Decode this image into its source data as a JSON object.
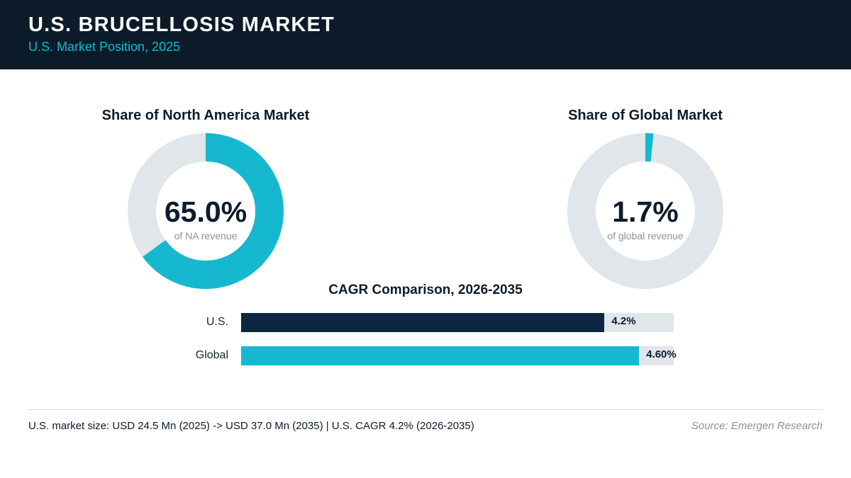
{
  "header": {
    "title": "U.S. BRUCELLOSIS MARKET",
    "subtitle": "U.S. Market Position, 2025"
  },
  "colors": {
    "header_bg": "#0b1b2a",
    "accent": "#16b8cf",
    "navy": "#0d2740",
    "track": "#e1e6ea"
  },
  "chart_data": [
    {
      "type": "pie",
      "title": "Share of North America Market",
      "value": 65.0,
      "value_label": "65.0%",
      "caption": "of NA revenue",
      "color": "#16b8cf"
    },
    {
      "type": "pie",
      "title": "Share of Global Market",
      "value": 1.7,
      "value_label": "1.7%",
      "caption": "of global revenue",
      "color": "#16b8cf"
    },
    {
      "type": "bar",
      "title": "CAGR Comparison, 2026-2035",
      "categories": [
        "U.S.",
        "Global"
      ],
      "values": [
        4.2,
        4.6
      ],
      "value_labels": [
        "4.2%",
        "4.60%"
      ],
      "colors": [
        "#0d2740",
        "#16b8cf"
      ],
      "xlim": [
        0,
        5
      ]
    }
  ],
  "footer": {
    "note": "U.S. market size: USD 24.5 Mn (2025) -> USD 37.0 Mn (2035)  |  U.S. CAGR 4.2% (2026-2035)",
    "source": "Source: Emergen Research"
  }
}
